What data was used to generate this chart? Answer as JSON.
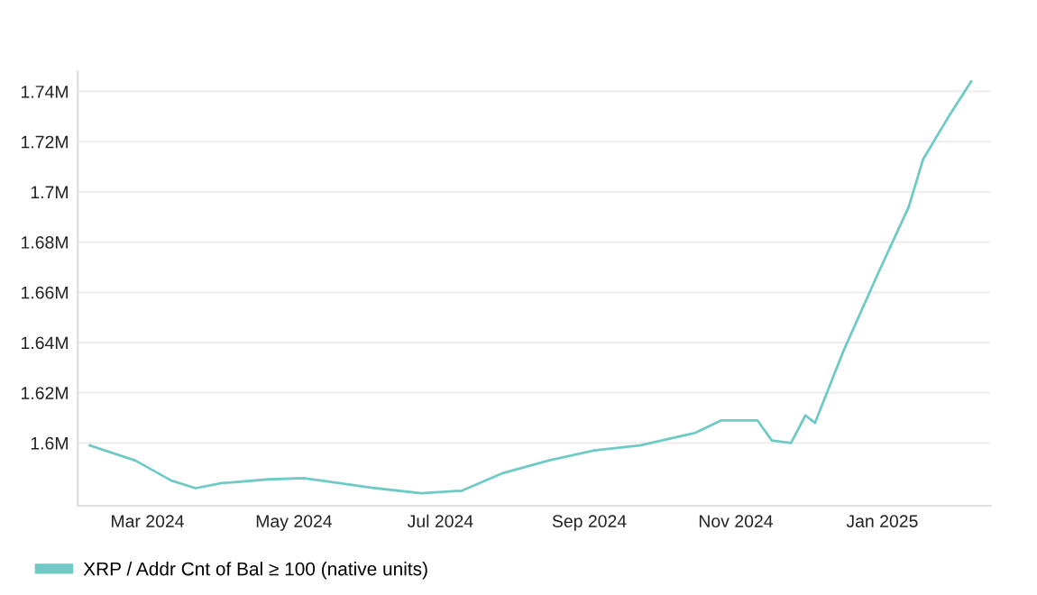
{
  "chart_data": {
    "type": "line",
    "x": [
      "2024-02-06",
      "2024-02-25",
      "2024-03-11",
      "2024-03-21",
      "2024-04-01",
      "2024-04-20",
      "2024-05-05",
      "2024-05-20",
      "2024-06-04",
      "2024-06-23",
      "2024-07-10",
      "2024-07-27",
      "2024-08-15",
      "2024-09-03",
      "2024-09-22",
      "2024-10-15",
      "2024-10-26",
      "2024-11-10",
      "2024-11-16",
      "2024-11-24",
      "2024-11-30",
      "2024-12-04",
      "2024-12-16",
      "2024-12-30",
      "2025-01-12",
      "2025-01-18",
      "2025-01-28",
      "2025-02-07"
    ],
    "series": [
      {
        "name": "XRP / Addr Cnt of Bal ≥ 100 (native units)",
        "color": "#6fcac6",
        "values": [
          1599000,
          1593000,
          1585000,
          1582000,
          1584000,
          1585500,
          1586000,
          1584000,
          1582000,
          1580000,
          1581000,
          1588000,
          1593000,
          1597000,
          1599000,
          1604000,
          1609000,
          1609000,
          1601000,
          1600000,
          1611000,
          1608000,
          1637000,
          1667000,
          1694000,
          1713000,
          1729000,
          1744000
        ]
      }
    ],
    "xlim": [
      "2024-02-01",
      "2025-02-15"
    ],
    "xticks": [
      {
        "value": "2024-03-01",
        "label": "Mar 2024"
      },
      {
        "value": "2024-05-01",
        "label": "May 2024"
      },
      {
        "value": "2024-07-01",
        "label": "Jul 2024"
      },
      {
        "value": "2024-09-01",
        "label": "Sep 2024"
      },
      {
        "value": "2024-11-01",
        "label": "Nov 2024"
      },
      {
        "value": "2025-01-01",
        "label": "Jan 2025"
      }
    ],
    "ylim": [
      1575000,
      1748000
    ],
    "yticks": [
      {
        "value": 1600000,
        "label": "1.6M"
      },
      {
        "value": 1620000,
        "label": "1.62M"
      },
      {
        "value": 1640000,
        "label": "1.64M"
      },
      {
        "value": 1660000,
        "label": "1.66M"
      },
      {
        "value": 1680000,
        "label": "1.68M"
      },
      {
        "value": 1700000,
        "label": "1.7M"
      },
      {
        "value": 1720000,
        "label": "1.72M"
      },
      {
        "value": 1740000,
        "label": "1.74M"
      }
    ],
    "grid": "y",
    "legend": "bottom left",
    "marker": "none",
    "line_style": "solid"
  }
}
